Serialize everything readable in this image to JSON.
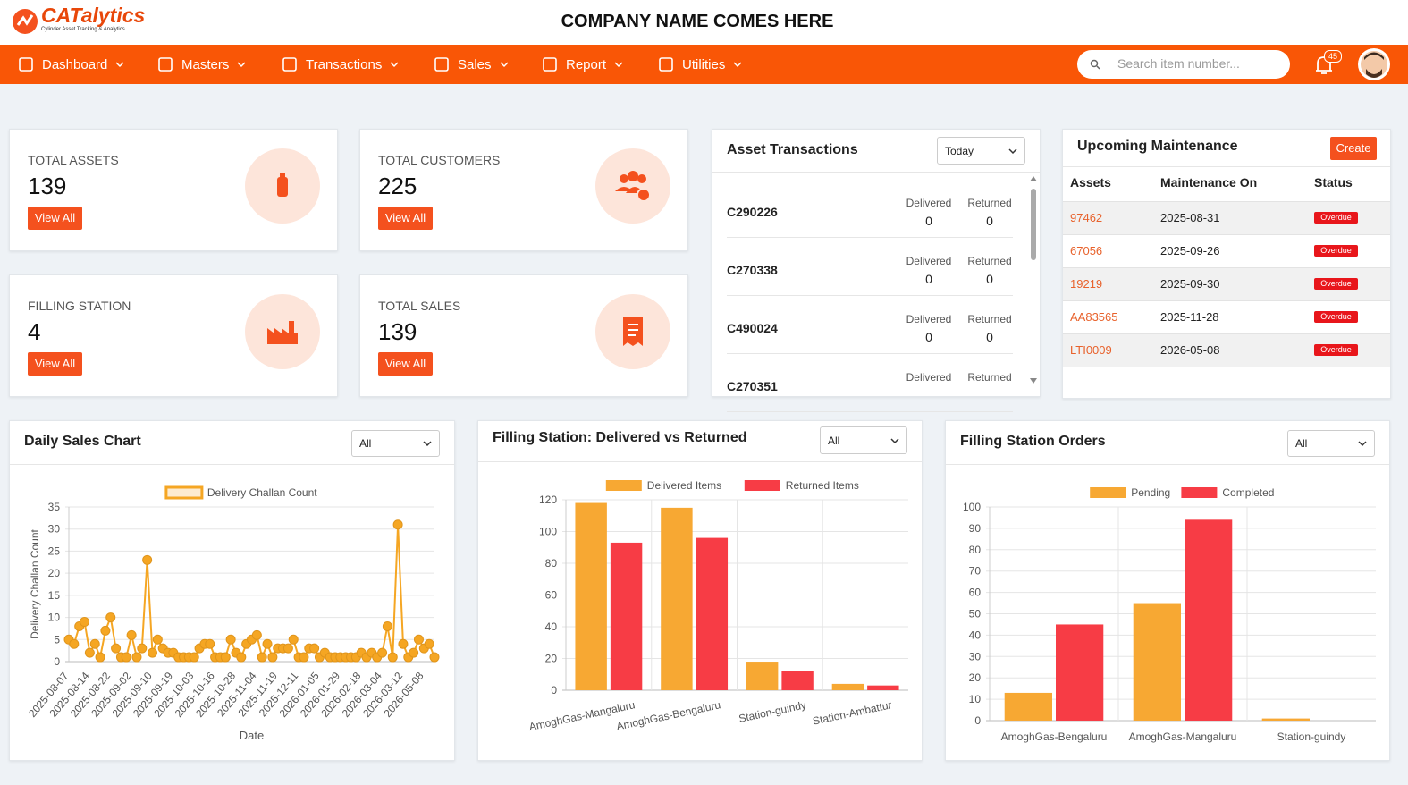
{
  "header": {
    "logo": "CATalytics",
    "logo_tagline": "Cylinder Asset Tracking & Analytics",
    "company": "COMPANY NAME COMES HERE"
  },
  "nav": {
    "items": [
      "Dashboard",
      "Masters",
      "Transactions",
      "Sales",
      "Report",
      "Utilities"
    ],
    "search_placeholder": "Search item number...",
    "notification_count": 45
  },
  "stats": [
    {
      "label": "TOTAL ASSETS",
      "value": 139,
      "button": "View All"
    },
    {
      "label": "TOTAL CUSTOMERS",
      "value": 225,
      "button": "View All"
    },
    {
      "label": "FILLING STATION",
      "value": 4,
      "button": "View All"
    },
    {
      "label": "TOTAL SALES",
      "value": 139,
      "button": "View All"
    }
  ],
  "asset_transactions": {
    "title": "Asset Transactions",
    "filter": "Today",
    "rows": [
      {
        "id": "C290226",
        "delivered_label": "Delivered",
        "delivered": 0,
        "returned_label": "Returned",
        "returned": 0
      },
      {
        "id": "C270338",
        "delivered_label": "Delivered",
        "delivered": 0,
        "returned_label": "Returned",
        "returned": 0
      },
      {
        "id": "C490024",
        "delivered_label": "Delivered",
        "delivered": 0,
        "returned_label": "Returned",
        "returned": 0
      },
      {
        "id": "C270351",
        "delivered_label": "Delivered",
        "returned_label": "Returned"
      }
    ]
  },
  "maintenance": {
    "title": "Upcoming Maintenance",
    "create": "Create",
    "columns": [
      "Assets",
      "Maintenance On",
      "Status"
    ],
    "rows": [
      [
        "97462",
        "2025-08-31",
        "Overdue"
      ],
      [
        "67056",
        "2025-09-26",
        "Overdue"
      ],
      [
        "19219",
        "2025-09-30",
        "Overdue"
      ],
      [
        "AA83565",
        "2025-11-28",
        "Overdue"
      ],
      [
        "LTI0009",
        "2026-05-08",
        "Overdue"
      ]
    ]
  },
  "chart_data": [
    {
      "type": "line",
      "title": "Daily Sales Chart",
      "filter": "All",
      "x_label": "Date",
      "y_label": "Delivery Challan Count",
      "categories": [
        "2025-08-07",
        null,
        null,
        null,
        "2025-08-14",
        null,
        null,
        null,
        "2025-08-22",
        null,
        null,
        null,
        "2025-09-02",
        null,
        null,
        null,
        "2025-09-10",
        null,
        null,
        null,
        "2025-09-19",
        null,
        null,
        null,
        "2025-10-03",
        null,
        null,
        null,
        "2025-10-16",
        null,
        null,
        null,
        "2025-10-28",
        null,
        null,
        null,
        "2025-11-04",
        null,
        null,
        null,
        "2025-11-19",
        null,
        null,
        null,
        "2025-12-11",
        null,
        null,
        null,
        "2026-01-05",
        null,
        null,
        null,
        "2026-01-29",
        null,
        null,
        null,
        "2026-02-18",
        null,
        null,
        null,
        "2026-03-04",
        null,
        null,
        null,
        "2026-03-12",
        null,
        null,
        null,
        "2026-05-08",
        null,
        null
      ],
      "series": [
        {
          "name": "Delivery Challan Count",
          "color": "#f5a623",
          "values": [
            5,
            4,
            8,
            9,
            2,
            4,
            1,
            7,
            10,
            3,
            1,
            1,
            6,
            1,
            3,
            23,
            2,
            5,
            3,
            2,
            2,
            1,
            1,
            1,
            1,
            3,
            4,
            4,
            1,
            1,
            1,
            5,
            2,
            1,
            4,
            5,
            6,
            1,
            4,
            1,
            3,
            3,
            3,
            5,
            1,
            1,
            3,
            3,
            1,
            2,
            1,
            1,
            1,
            1,
            1,
            1,
            2,
            1,
            2,
            1,
            2,
            8,
            1,
            31,
            4,
            1,
            2,
            5,
            3,
            4,
            1
          ]
        }
      ],
      "ylim": [
        0,
        35
      ],
      "yticks": [
        0,
        5,
        10,
        15,
        20,
        25,
        30,
        35
      ],
      "grid": true
    },
    {
      "type": "bar",
      "title": "Filling Station: Delivered vs Returned",
      "filter": "All",
      "categories": [
        "AmoghGas-Mangaluru",
        "AmoghGas-Bengaluru",
        "Station-guindy",
        "Station-Ambattur"
      ],
      "series": [
        {
          "name": "Delivered Items",
          "color": "#f7a833",
          "values": [
            118,
            115,
            18,
            4
          ]
        },
        {
          "name": "Returned Items",
          "color": "#f73c45",
          "values": [
            93,
            96,
            12,
            3
          ]
        }
      ],
      "ylim": [
        0,
        120
      ],
      "yticks": [
        0,
        20,
        40,
        60,
        80,
        100,
        120
      ],
      "grid": true
    },
    {
      "type": "bar",
      "title": "Filling Station Orders",
      "filter": "All",
      "categories": [
        "AmoghGas-Bengaluru",
        "AmoghGas-Mangaluru",
        "Station-guindy"
      ],
      "series": [
        {
          "name": "Pending",
          "color": "#f7a833",
          "values": [
            13,
            55,
            1
          ]
        },
        {
          "name": "Completed",
          "color": "#f73c45",
          "values": [
            45,
            94,
            0
          ]
        }
      ],
      "ylim": [
        0,
        100
      ],
      "yticks": [
        0,
        10,
        20,
        30,
        40,
        50,
        60,
        70,
        80,
        90,
        100
      ],
      "grid": true
    }
  ]
}
